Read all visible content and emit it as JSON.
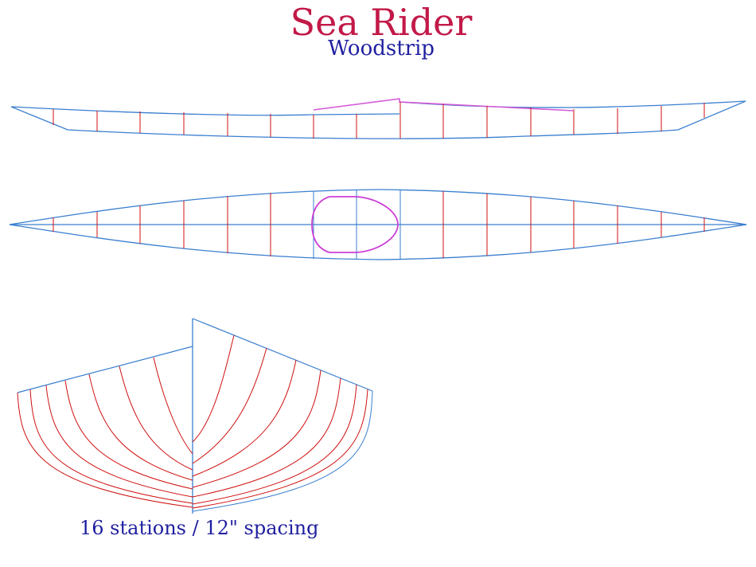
{
  "header": {
    "title": "Sea Rider",
    "subtitle": "Woodstrip"
  },
  "caption": "16 stations / 12\" spacing",
  "colors": {
    "outline": "#3a7fcf",
    "station": "#d01010",
    "cockpit": "#cc3fd6",
    "title": "#c21948",
    "subtitle": "#1f1fa0"
  }
}
